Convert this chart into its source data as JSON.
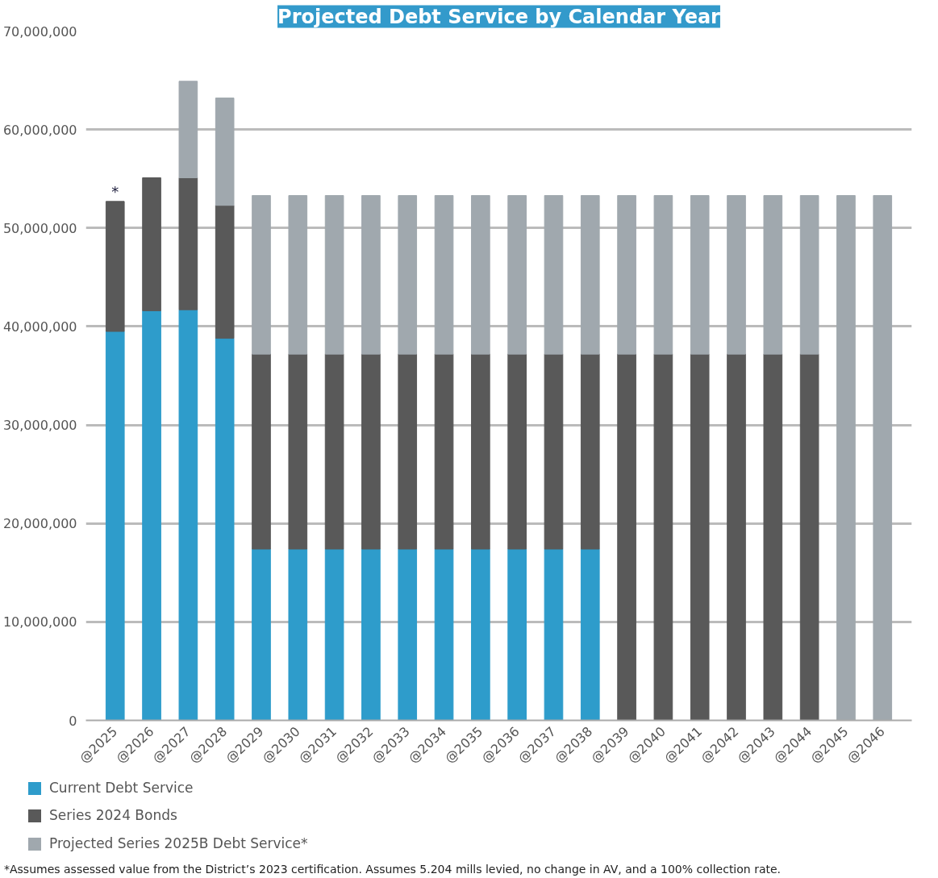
{
  "chart_data": {
    "type": "bar",
    "title": "Projected Debt Service by Calendar Year",
    "stacked": true,
    "categories": [
      "@2025",
      "@2026",
      "@2027",
      "@2028",
      "@2029",
      "@2030",
      "@2031",
      "@2032",
      "@2033",
      "@2034",
      "@2035",
      "@2036",
      "@2037",
      "@2038",
      "@2039",
      "@2040",
      "@2041",
      "@2042",
      "@2043",
      "@2044",
      "@2045",
      "@2046"
    ],
    "series": [
      {
        "name": "Current Debt Service",
        "color": "#2e9ccb",
        "values": [
          39500000,
          41600000,
          41700000,
          38800000,
          17400000,
          17400000,
          17400000,
          17400000,
          17400000,
          17400000,
          17400000,
          17400000,
          17400000,
          17400000,
          null,
          null,
          null,
          null,
          null,
          null,
          null,
          null
        ]
      },
      {
        "name": "Series 2024 Bonds",
        "color": "#595959",
        "values": [
          13200000,
          13500000,
          13400000,
          13500000,
          19800000,
          19800000,
          19800000,
          19800000,
          19800000,
          19800000,
          19800000,
          19800000,
          19800000,
          19800000,
          37200000,
          37200000,
          37200000,
          37200000,
          37200000,
          37200000,
          null,
          null
        ]
      },
      {
        "name": "Projected Series 2025B Debt Service*",
        "color": "#a0a8ae",
        "values": [
          null,
          null,
          9800000,
          10900000,
          16100000,
          16100000,
          16100000,
          16100000,
          16100000,
          16100000,
          16100000,
          16100000,
          16100000,
          16100000,
          16100000,
          16100000,
          16100000,
          16100000,
          16100000,
          16100000,
          53300000,
          53300000
        ]
      }
    ],
    "ylim": [
      0,
      70000000
    ],
    "yticks": [
      {
        "value": 0,
        "label": "0"
      },
      {
        "value": 10000000,
        "label": "10,000,000"
      },
      {
        "value": 20000000,
        "label": "20,000,000"
      },
      {
        "value": 30000000,
        "label": "30,000,000"
      },
      {
        "value": 40000000,
        "label": "40,000,000"
      },
      {
        "value": 50000000,
        "label": "50,000,000"
      },
      {
        "value": 60000000,
        "label": "60,000,000"
      },
      {
        "value": 70000000,
        "label": "70,000,000"
      }
    ],
    "grid": "y",
    "legend": "bottom left",
    "annotations": [
      "*",
      "*Assumes assessed value from the District’s 2023 certification. Assumes 5.204 mills levied, no change in AV, and a 100% collection rate."
    ]
  }
}
